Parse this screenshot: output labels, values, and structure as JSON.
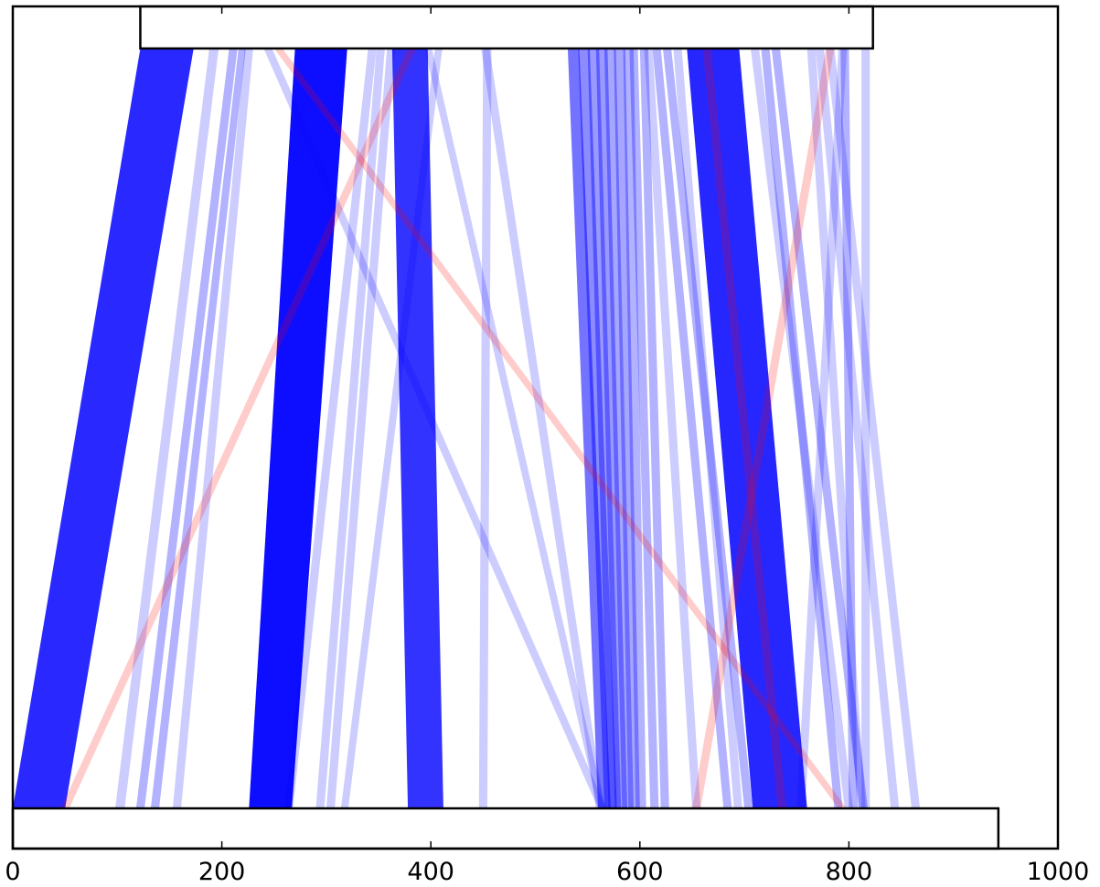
{
  "chart_data": {
    "type": "alignment-ribbons",
    "xlim": [
      0,
      1000
    ],
    "x_ticks": [
      0,
      200,
      400,
      600,
      800,
      1000
    ],
    "x_tick_labels": [
      "0",
      "200",
      "400",
      "600",
      "800",
      "1000"
    ],
    "top_segment": [
      122,
      823
    ],
    "bottom_segment": [
      0,
      943
    ],
    "colors": {
      "forward": "#0000ff",
      "reverse": "#ff0000"
    },
    "links": [
      {
        "top": [
          122,
          173
        ],
        "bottom": [
          0,
          50
        ],
        "orientation": "forward",
        "opacity": 0.84
      },
      {
        "top": [
          188,
          197
        ],
        "bottom": [
          98,
          107
        ],
        "orientation": "forward",
        "opacity": 0.2
      },
      {
        "top": [
          207,
          215
        ],
        "bottom": [
          118,
          126
        ],
        "orientation": "forward",
        "opacity": 0.3
      },
      {
        "top": [
          216,
          223
        ],
        "bottom": [
          132,
          140
        ],
        "orientation": "forward",
        "opacity": 0.3
      },
      {
        "top": [
          222,
          230
        ],
        "bottom": [
          153,
          161
        ],
        "orientation": "forward",
        "opacity": 0.2
      },
      {
        "top": [
          240,
          248
        ],
        "bottom": [
          560,
          568
        ],
        "orientation": "forward",
        "opacity": 0.2
      },
      {
        "top": [
          270,
          320
        ],
        "bottom": [
          226,
          267
        ],
        "orientation": "forward",
        "opacity": 0.95
      },
      {
        "top": [
          340,
          348
        ],
        "bottom": [
          260,
          268
        ],
        "orientation": "forward",
        "opacity": 0.2
      },
      {
        "top": [
          348,
          356
        ],
        "bottom": [
          290,
          298
        ],
        "orientation": "forward",
        "opacity": 0.2
      },
      {
        "top": [
          358,
          366
        ],
        "bottom": [
          300,
          308
        ],
        "orientation": "forward",
        "opacity": 0.2
      },
      {
        "top": [
          363,
          397
        ],
        "bottom": [
          378,
          412
        ],
        "orientation": "forward",
        "opacity": 0.8
      },
      {
        "top": [
          404,
          411
        ],
        "bottom": [
          314,
          321
        ],
        "orientation": "forward",
        "opacity": 0.2
      },
      {
        "top": [
          394,
          401
        ],
        "bottom": [
          560,
          567
        ],
        "orientation": "forward",
        "opacity": 0.2
      },
      {
        "top": [
          448,
          456
        ],
        "bottom": [
          558,
          566
        ],
        "orientation": "forward",
        "opacity": 0.2
      },
      {
        "top": [
          450,
          458
        ],
        "bottom": [
          446,
          454
        ],
        "orientation": "forward",
        "opacity": 0.2
      },
      {
        "top": [
          531,
          542
        ],
        "bottom": [
          560,
          572
        ],
        "orientation": "forward",
        "opacity": 0.55
      },
      {
        "top": [
          541,
          552
        ],
        "bottom": [
          566,
          578
        ],
        "orientation": "forward",
        "opacity": 0.45
      },
      {
        "top": [
          550,
          561
        ],
        "bottom": [
          570,
          582
        ],
        "orientation": "forward",
        "opacity": 0.4
      },
      {
        "top": [
          558,
          569
        ],
        "bottom": [
          576,
          588
        ],
        "orientation": "forward",
        "opacity": 0.4
      },
      {
        "top": [
          566,
          577
        ],
        "bottom": [
          583,
          594
        ],
        "orientation": "forward",
        "opacity": 0.35
      },
      {
        "top": [
          575,
          586
        ],
        "bottom": [
          589,
          600
        ],
        "orientation": "forward",
        "opacity": 0.35
      },
      {
        "top": [
          584,
          594
        ],
        "bottom": [
          596,
          606
        ],
        "orientation": "forward",
        "opacity": 0.3
      },
      {
        "top": [
          590,
          598
        ],
        "bottom": [
          610,
          618
        ],
        "orientation": "forward",
        "opacity": 0.3
      },
      {
        "top": [
          600,
          608
        ],
        "bottom": [
          620,
          628
        ],
        "orientation": "forward",
        "opacity": 0.3
      },
      {
        "top": [
          604,
          612
        ],
        "bottom": [
          650,
          658
        ],
        "orientation": "forward",
        "opacity": 0.2
      },
      {
        "top": [
          612,
          620
        ],
        "bottom": [
          680,
          688
        ],
        "orientation": "forward",
        "opacity": 0.3
      },
      {
        "top": [
          622,
          630
        ],
        "bottom": [
          700,
          708
        ],
        "orientation": "forward",
        "opacity": 0.3
      },
      {
        "top": [
          632,
          640
        ],
        "bottom": [
          690,
          698
        ],
        "orientation": "forward",
        "opacity": 0.2
      },
      {
        "top": [
          645,
          695
        ],
        "bottom": [
          708,
          760
        ],
        "orientation": "forward",
        "opacity": 0.85
      },
      {
        "top": [
          706,
          714
        ],
        "bottom": [
          796,
          804
        ],
        "orientation": "forward",
        "opacity": 0.2
      },
      {
        "top": [
          716,
          724
        ],
        "bottom": [
          786,
          794
        ],
        "orientation": "forward",
        "opacity": 0.3
      },
      {
        "top": [
          726,
          734
        ],
        "bottom": [
          810,
          818
        ],
        "orientation": "forward",
        "opacity": 0.3
      },
      {
        "top": [
          760,
          768
        ],
        "bottom": [
          808,
          816
        ],
        "orientation": "forward",
        "opacity": 0.2
      },
      {
        "top": [
          768,
          776
        ],
        "bottom": [
          840,
          848
        ],
        "orientation": "forward",
        "opacity": 0.2
      },
      {
        "top": [
          778,
          786
        ],
        "bottom": [
          860,
          868
        ],
        "orientation": "forward",
        "opacity": 0.2
      },
      {
        "top": [
          792,
          800
        ],
        "bottom": [
          800,
          808
        ],
        "orientation": "forward",
        "opacity": 0.3
      },
      {
        "top": [
          812,
          820
        ],
        "bottom": [
          812,
          820
        ],
        "orientation": "forward",
        "opacity": 0.2
      },
      {
        "top": [
          790,
          798
        ],
        "bottom": [
          750,
          758
        ],
        "orientation": "forward",
        "opacity": 0.2
      },
      {
        "top": [
          250,
          258
        ],
        "bottom": [
          790,
          798
        ],
        "orientation": "reverse",
        "opacity": 0.2
      },
      {
        "top": [
          378,
          386
        ],
        "bottom": [
          46,
          54
        ],
        "orientation": "reverse",
        "opacity": 0.2
      },
      {
        "top": [
          660,
          668
        ],
        "bottom": [
          732,
          740
        ],
        "orientation": "reverse",
        "opacity": 0.2
      },
      {
        "top": [
          778,
          786
        ],
        "bottom": [
          650,
          658
        ],
        "orientation": "reverse",
        "opacity": 0.2
      }
    ]
  }
}
